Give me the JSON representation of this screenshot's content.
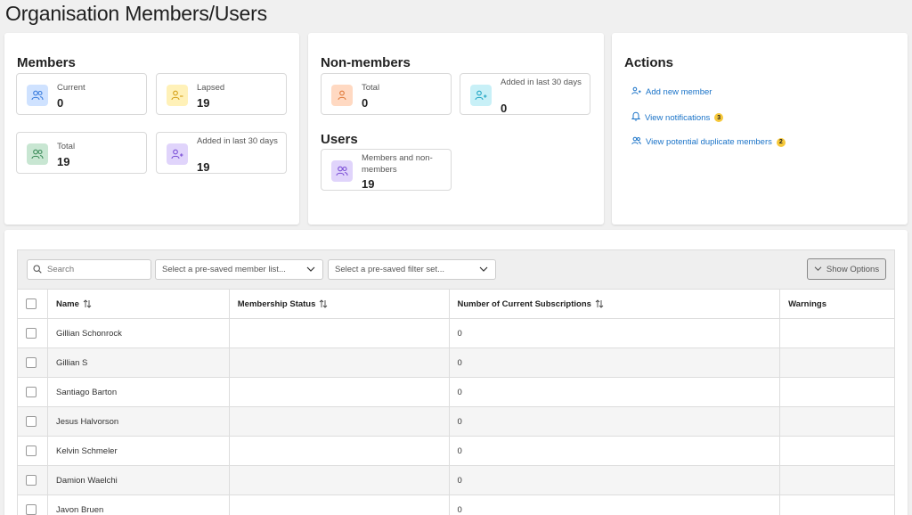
{
  "page_title": "Organisation Members/Users",
  "members": {
    "title": "Members",
    "current": {
      "label": "Current",
      "value": "0"
    },
    "lapsed": {
      "label": "Lapsed",
      "value": "19"
    },
    "total": {
      "label": "Total",
      "value": "19"
    },
    "added": {
      "label": "Added in last 30 days",
      "value": "19"
    }
  },
  "non_members": {
    "title": "Non-members",
    "total": {
      "label": "Total",
      "value": "0"
    },
    "added": {
      "label": "Added in last 30 days",
      "value": "0"
    }
  },
  "users": {
    "title": "Users",
    "all": {
      "label": "Members and non-members",
      "value": "19"
    }
  },
  "actions": {
    "title": "Actions",
    "add_member": "Add new member",
    "view_notifications": "View notifications",
    "notifications_count": "3",
    "view_duplicates": "View potential duplicate members",
    "duplicates_count": "2"
  },
  "toolbar": {
    "search_placeholder": "Search",
    "member_list_placeholder": "Select a pre-saved member list...",
    "filter_set_placeholder": "Select a pre-saved filter set...",
    "show_options": "Show Options"
  },
  "table": {
    "columns": [
      "Name",
      "Membership Status",
      "Number of Current Subscriptions",
      "Warnings"
    ],
    "rows": [
      {
        "name": "Gillian Schonrock",
        "status": "",
        "subs": "0",
        "warnings": ""
      },
      {
        "name": "Gillian S",
        "status": "",
        "subs": "0",
        "warnings": ""
      },
      {
        "name": "Santiago Barton",
        "status": "",
        "subs": "0",
        "warnings": ""
      },
      {
        "name": "Jesus Halvorson",
        "status": "",
        "subs": "0",
        "warnings": ""
      },
      {
        "name": "Kelvin Schmeler",
        "status": "",
        "subs": "0",
        "warnings": ""
      },
      {
        "name": "Damion Waelchi",
        "status": "",
        "subs": "0",
        "warnings": ""
      },
      {
        "name": "Javon Bruen",
        "status": "",
        "subs": "0",
        "warnings": ""
      }
    ]
  },
  "colors": {
    "link": "#1a73c8",
    "badge": "#f6c83a",
    "icon_blue": "#3b7ddd",
    "icon_yellow": "#d4a017",
    "icon_green": "#3c8c5a",
    "icon_purple": "#7b4fd6",
    "icon_orange": "#e07a3a",
    "icon_cyan": "#22a6c4"
  }
}
